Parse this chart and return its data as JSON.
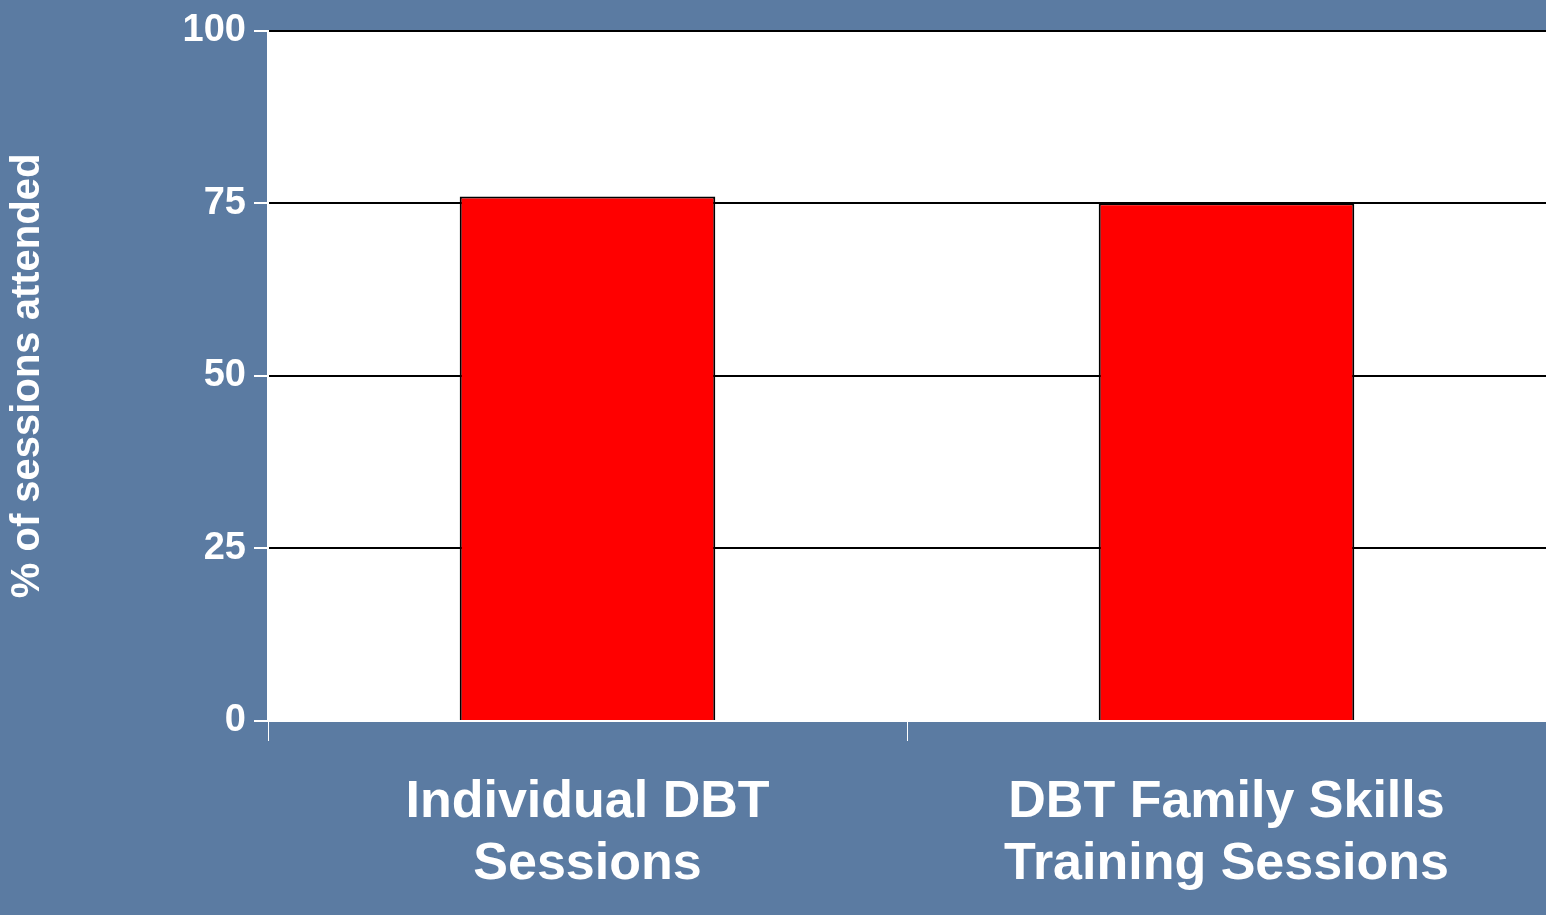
{
  "chart_data": {
    "type": "bar",
    "ylabel": "% of sessions attended",
    "categories": [
      "Individual DBT Sessions",
      "DBT Family Skills Training Sessions"
    ],
    "values": [
      76,
      75
    ],
    "color": "#ff0000",
    "ylim": [
      0,
      100
    ],
    "yticks": [
      0,
      25,
      50,
      75,
      100
    ],
    "grid": "y",
    "legend": false
  }
}
